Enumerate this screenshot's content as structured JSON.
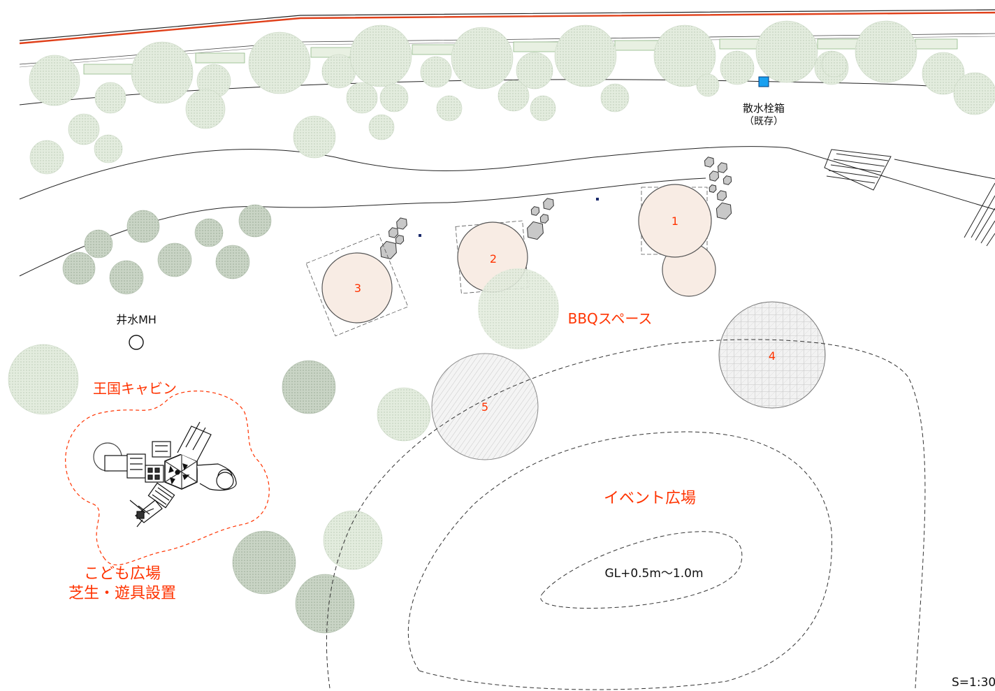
{
  "labels": {
    "sprinkler_box_line1": "散水栓箱",
    "sprinkler_box_line2": "（既存）",
    "well_mh": "井水MH",
    "bbq_space": "BBQスペース",
    "kingdom_cabin": "王国キャビン",
    "kids_plaza_line1": "こども広場",
    "kids_plaza_line2": "芝生・遊具設置",
    "event_plaza": "イベント広場",
    "gl_height": "GL+0.5m〜1.0m",
    "scale": "S=1:30"
  },
  "spots": [
    {
      "id": "spot-1",
      "number": "1"
    },
    {
      "id": "spot-2",
      "number": "2"
    },
    {
      "id": "spot-3",
      "number": "3"
    },
    {
      "id": "spot-4",
      "number": "4"
    },
    {
      "id": "spot-5",
      "number": "5"
    }
  ],
  "colors": {
    "label_red": "#ff3300",
    "tree_light": "#dfe9da",
    "tree_dark": "#c5d2c2",
    "bbq_fill": "#f8ece4",
    "sprinkler_box": "#1aa0f0",
    "boulder": "#c8c8c8"
  },
  "icons": {
    "sprinkler_box": "square-marker-icon",
    "well_manhole": "manhole-circle-icon",
    "playground": "play-structure-icon",
    "boulder": "boulder-icon",
    "tree": "tree-canopy-icon"
  }
}
